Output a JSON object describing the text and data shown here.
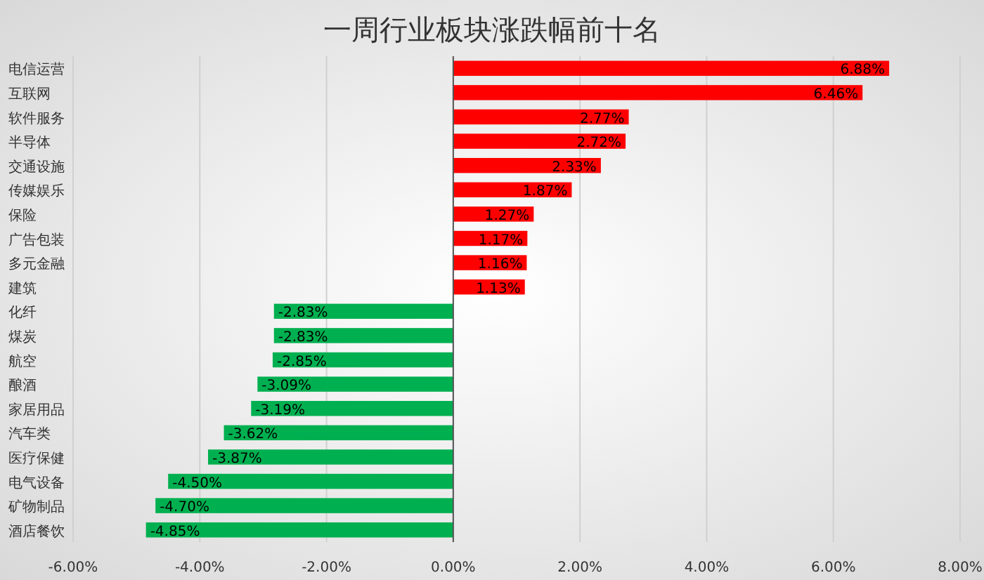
{
  "chart_data": {
    "type": "bar",
    "orientation": "horizontal",
    "title": "一周行业板块涨跌幅前十名",
    "categories": [
      "电信运营",
      "互联网",
      "软件服务",
      "半导体",
      "交通设施",
      "传媒娱乐",
      "保险",
      "广告包装",
      "多元金融",
      "建筑",
      "化纤",
      "煤炭",
      "航空",
      "酿酒",
      "家居用品",
      "汽车类",
      "医疗保健",
      "电气设备",
      "矿物制品",
      "酒店餐饮"
    ],
    "values": [
      6.88,
      6.46,
      2.77,
      2.72,
      2.33,
      1.87,
      1.27,
      1.17,
      1.16,
      1.13,
      -2.83,
      -2.83,
      -2.85,
      -3.09,
      -3.19,
      -3.62,
      -3.87,
      -4.5,
      -4.7,
      -4.85
    ],
    "value_labels": [
      "6.88%",
      "6.46%",
      "2.77%",
      "2.72%",
      "2.33%",
      "1.87%",
      "1.27%",
      "1.17%",
      "1.16%",
      "1.13%",
      "-2.83%",
      "-2.83%",
      "-2.85%",
      "-3.09%",
      "-3.19%",
      "-3.62%",
      "-3.87%",
      "-4.50%",
      "-4.70%",
      "-4.85%"
    ],
    "colors": [
      "#ff0000",
      "#ff0000",
      "#ff0000",
      "#ff0000",
      "#ff0000",
      "#ff0000",
      "#ff0000",
      "#ff0000",
      "#ff0000",
      "#ff0000",
      "#00b050",
      "#00b050",
      "#00b050",
      "#00b050",
      "#00b050",
      "#00b050",
      "#00b050",
      "#00b050",
      "#00b050",
      "#00b050"
    ],
    "xlim": [
      -6,
      8
    ],
    "xticks": [
      {
        "value": -6,
        "label": "-6.00%"
      },
      {
        "value": -4,
        "label": "-4.00%"
      },
      {
        "value": -2,
        "label": "-2.00%"
      },
      {
        "value": 0,
        "label": "0.00%"
      },
      {
        "value": 2,
        "label": "2.00%"
      },
      {
        "value": 4,
        "label": "4.00%"
      },
      {
        "value": 6,
        "label": "6.00%"
      },
      {
        "value": 8,
        "label": "8.00%"
      }
    ],
    "grid": "x"
  }
}
